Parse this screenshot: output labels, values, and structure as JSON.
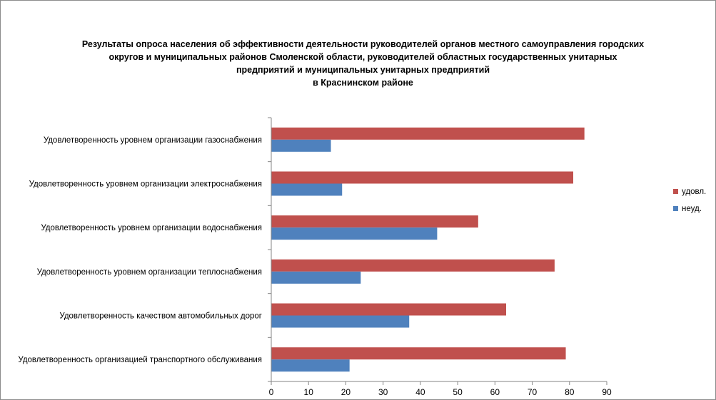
{
  "chart_data": {
    "type": "bar",
    "orientation": "horizontal",
    "title_lines": [
      "Результаты опроса населения об эффективности деятельности руководителей органов местного самоуправления городских",
      "округов и муниципальных районов Смоленской области, руководителей областных государственных унитарных",
      "предприятий и муниципальных унитарных предприятий",
      "в Краснинском районе"
    ],
    "categories": [
      "Удовлетворенность  уровнем организации газоснабжения",
      "Удовлетворенность  уровнем организации электроснабжения",
      "Удовлетворенность  уровнем организации водоснабжения",
      "Удовлетворенность  уровнем организации теплоснабжения",
      "Удовлетворенность  качеством автомобильных дорог",
      "Удовлетворенность  организацией транспортного обслуживания"
    ],
    "series": [
      {
        "name": "удовл.",
        "color": "#C0504D",
        "values": [
          84,
          81,
          55.5,
          76,
          63,
          79
        ]
      },
      {
        "name": "неуд.",
        "color": "#4F81BD",
        "values": [
          16,
          19,
          44.5,
          24,
          37,
          21
        ]
      }
    ],
    "xlim": [
      0,
      90
    ],
    "xticks": [
      0,
      10,
      20,
      30,
      40,
      50,
      60,
      70,
      80,
      90
    ],
    "grid": false,
    "legend_position": "right"
  }
}
